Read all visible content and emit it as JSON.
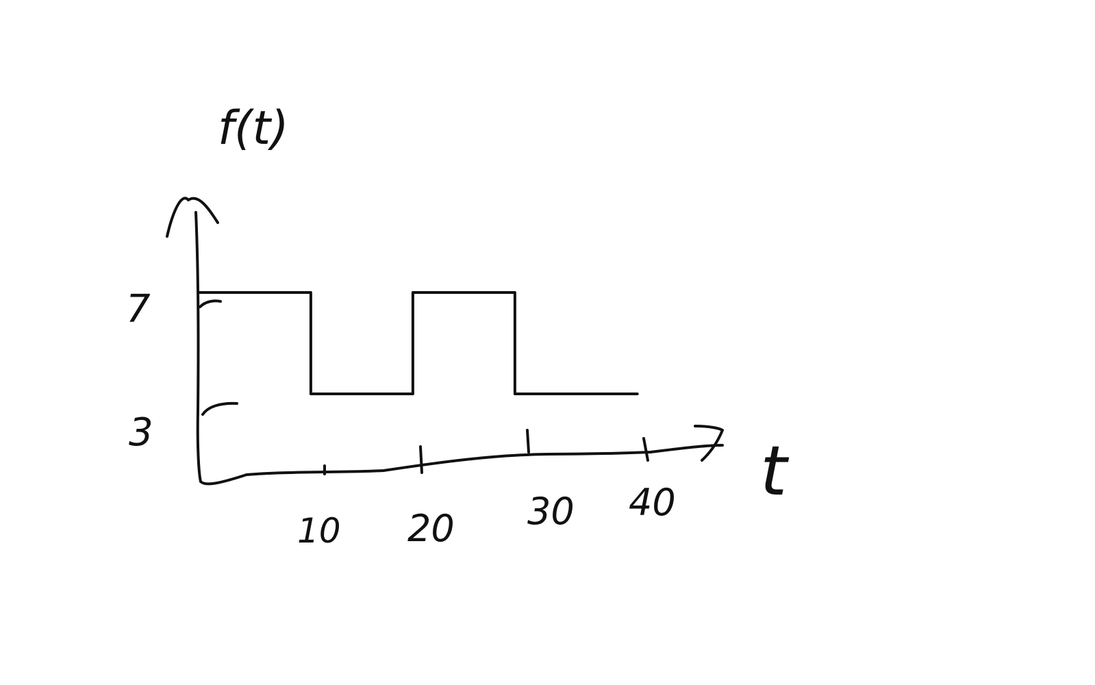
{
  "diagram": {
    "y_axis_label": "f(t)",
    "x_axis_label": "t",
    "y_ticks": [
      "7",
      "3"
    ],
    "x_ticks": [
      "10",
      "20",
      "30",
      "40"
    ],
    "ink_color": "#111111",
    "background": "#ffffff"
  },
  "chart_data": {
    "type": "line",
    "title": "",
    "xlabel": "t",
    "ylabel": "f(t)",
    "x_ticks": [
      10,
      20,
      30,
      40
    ],
    "y_ticks": [
      3,
      7
    ],
    "series": [
      {
        "x": [
          0,
          11,
          11,
          21,
          21,
          31,
          31,
          43
        ],
        "y": [
          7,
          7,
          3,
          3,
          7,
          7,
          3,
          3
        ]
      }
    ],
    "grid": false,
    "legend": "none"
  }
}
